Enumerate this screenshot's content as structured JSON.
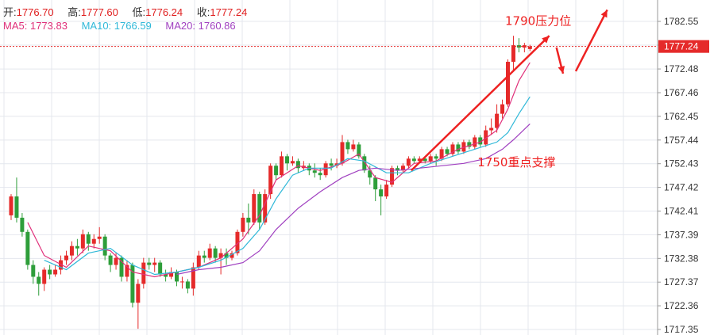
{
  "header": {
    "open_label": "开:",
    "open": "1776.70",
    "high_label": "高:",
    "high": "1777.60",
    "low_label": "低:",
    "low": "1776.24",
    "close_label": "收:",
    "close": "1777.24",
    "ma5_label": "MA5:",
    "ma5": "1773.83",
    "ma10_label": "MA10:",
    "ma10": "1766.59",
    "ma20_label": "MA20:",
    "ma20": "1760.86"
  },
  "colors": {
    "up": "#e52a2a",
    "down": "#2e9e3a",
    "ma5": "#e0307a",
    "ma10": "#2fb8d8",
    "ma20": "#a040c0",
    "annotation": "#ee2222",
    "grid": "#e4e7ee",
    "current_line": "#e52a2a"
  },
  "chart_data": {
    "type": "candlestick",
    "current_price": 1777.24,
    "current_price_label": "1777.24",
    "ylim": [
      1717.35,
      1785.5
    ],
    "y_ticks": [
      1782.55,
      1777.52,
      1772.48,
      1767.46,
      1762.45,
      1757.44,
      1752.43,
      1747.42,
      1742.41,
      1737.39,
      1732.38,
      1727.37,
      1722.36,
      1717.35
    ],
    "y_tick_labels": [
      "1782.55",
      "1777.52",
      "1772.48",
      "1767.46",
      "1762.45",
      "1757.44",
      "1752.43",
      "1747.42",
      "1742.41",
      "1737.39",
      "1732.38",
      "1727.37",
      "1722.36",
      "1717.35"
    ],
    "grid": true,
    "candles": [
      [
        1741.5,
        1745.5,
        1746.0,
        1740.5
      ],
      [
        1745.5,
        1741.0,
        1749.5,
        1740.0
      ],
      [
        1741.0,
        1738.0,
        1742.0,
        1737.0
      ],
      [
        1738.0,
        1731.0,
        1738.5,
        1730.0
      ],
      [
        1731.0,
        1728.5,
        1732.0,
        1727.0
      ],
      [
        1728.5,
        1727.0,
        1729.5,
        1724.5
      ],
      [
        1727.0,
        1730.0,
        1730.5,
        1725.5
      ],
      [
        1730.0,
        1729.0,
        1731.0,
        1728.0
      ],
      [
        1729.0,
        1730.0,
        1731.0,
        1728.5
      ],
      [
        1730.0,
        1732.0,
        1733.0,
        1729.0
      ],
      [
        1732.0,
        1733.0,
        1734.0,
        1731.0
      ],
      [
        1733.0,
        1735.0,
        1736.0,
        1732.0
      ],
      [
        1735.0,
        1734.5,
        1736.5,
        1733.0
      ],
      [
        1734.5,
        1737.5,
        1738.5,
        1733.5
      ],
      [
        1737.5,
        1735.5,
        1738.0,
        1734.0
      ],
      [
        1735.5,
        1736.5,
        1737.5,
        1734.5
      ],
      [
        1736.5,
        1737.0,
        1739.0,
        1735.5
      ],
      [
        1737.0,
        1733.0,
        1737.5,
        1732.0
      ],
      [
        1733.0,
        1731.0,
        1733.5,
        1729.5
      ],
      [
        1731.0,
        1732.5,
        1733.5,
        1730.0
      ],
      [
        1732.5,
        1728.5,
        1733.0,
        1727.5
      ],
      [
        1728.5,
        1731.0,
        1732.0,
        1727.5
      ],
      [
        1731.0,
        1723.0,
        1731.5,
        1722.0
      ],
      [
        1723.0,
        1727.0,
        1728.0,
        1717.5
      ],
      [
        1727.0,
        1731.5,
        1732.5,
        1726.0
      ],
      [
        1731.5,
        1731.0,
        1732.5,
        1730.0
      ],
      [
        1731.0,
        1731.5,
        1732.5,
        1729.5
      ],
      [
        1731.5,
        1729.0,
        1732.0,
        1728.5
      ],
      [
        1729.0,
        1728.5,
        1730.0,
        1727.5
      ],
      [
        1728.5,
        1729.5,
        1730.5,
        1728.0
      ],
      [
        1729.5,
        1727.5,
        1730.0,
        1726.5
      ],
      [
        1727.5,
        1727.5,
        1728.5,
        1726.0
      ],
      [
        1727.5,
        1726.0,
        1728.0,
        1725.0
      ],
      [
        1726.0,
        1730.5,
        1731.5,
        1724.5
      ],
      [
        1730.5,
        1733.0,
        1734.0,
        1730.0
      ],
      [
        1733.0,
        1732.5,
        1734.0,
        1731.5
      ],
      [
        1732.5,
        1734.5,
        1735.5,
        1732.0
      ],
      [
        1734.5,
        1732.5,
        1735.0,
        1731.5
      ],
      [
        1732.5,
        1733.5,
        1734.5,
        1729.0
      ],
      [
        1733.5,
        1732.5,
        1734.5,
        1731.0
      ],
      [
        1732.5,
        1733.5,
        1734.0,
        1732.0
      ],
      [
        1733.5,
        1738.0,
        1738.5,
        1733.0
      ],
      [
        1738.0,
        1741.0,
        1742.0,
        1737.0
      ],
      [
        1741.0,
        1740.0,
        1744.0,
        1737.5
      ],
      [
        1740.0,
        1746.0,
        1747.0,
        1739.5
      ],
      [
        1746.0,
        1740.0,
        1746.5,
        1738.5
      ],
      [
        1740.0,
        1746.0,
        1747.0,
        1739.5
      ],
      [
        1746.0,
        1752.0,
        1752.5,
        1745.0
      ],
      [
        1752.0,
        1750.0,
        1752.5,
        1749.0
      ],
      [
        1750.0,
        1754.0,
        1755.0,
        1749.5
      ],
      [
        1754.0,
        1752.5,
        1754.5,
        1751.0
      ],
      [
        1752.5,
        1753.0,
        1754.0,
        1752.0
      ],
      [
        1753.0,
        1751.5,
        1753.5,
        1750.5
      ],
      [
        1751.5,
        1752.0,
        1753.0,
        1751.0
      ],
      [
        1752.0,
        1751.0,
        1752.5,
        1750.0
      ],
      [
        1751.0,
        1750.5,
        1752.5,
        1749.5
      ],
      [
        1750.5,
        1750.0,
        1751.5,
        1749.0
      ],
      [
        1750.0,
        1752.5,
        1753.0,
        1749.5
      ],
      [
        1752.5,
        1752.0,
        1753.5,
        1751.0
      ],
      [
        1752.0,
        1752.5,
        1753.5,
        1751.5
      ],
      [
        1752.5,
        1757.0,
        1758.5,
        1752.0
      ],
      [
        1757.0,
        1755.5,
        1757.5,
        1754.5
      ],
      [
        1755.5,
        1756.5,
        1757.5,
        1755.0
      ],
      [
        1756.5,
        1754.0,
        1757.0,
        1753.5
      ],
      [
        1754.0,
        1751.0,
        1754.5,
        1750.5
      ],
      [
        1751.0,
        1749.5,
        1752.0,
        1748.0
      ],
      [
        1749.5,
        1747.0,
        1750.0,
        1744.5
      ],
      [
        1747.0,
        1745.5,
        1748.0,
        1741.5
      ],
      [
        1745.5,
        1748.0,
        1749.0,
        1745.0
      ],
      [
        1748.0,
        1751.5,
        1752.0,
        1747.5
      ],
      [
        1751.5,
        1751.0,
        1752.0,
        1750.0
      ],
      [
        1751.0,
        1752.0,
        1752.5,
        1750.5
      ],
      [
        1752.0,
        1753.5,
        1754.0,
        1751.5
      ],
      [
        1753.5,
        1753.0,
        1754.0,
        1752.5
      ],
      [
        1753.0,
        1753.5,
        1754.0,
        1752.5
      ],
      [
        1753.5,
        1753.0,
        1754.0,
        1752.5
      ],
      [
        1753.0,
        1754.0,
        1754.5,
        1752.5
      ],
      [
        1754.0,
        1753.5,
        1754.5,
        1752.0
      ],
      [
        1753.5,
        1755.5,
        1756.0,
        1753.0
      ],
      [
        1755.5,
        1754.5,
        1756.0,
        1754.0
      ],
      [
        1754.5,
        1756.5,
        1757.0,
        1754.0
      ],
      [
        1756.5,
        1755.0,
        1757.0,
        1754.5
      ],
      [
        1755.0,
        1757.0,
        1757.5,
        1754.5
      ],
      [
        1757.0,
        1756.0,
        1757.5,
        1755.5
      ],
      [
        1756.0,
        1758.0,
        1758.5,
        1755.5
      ],
      [
        1758.0,
        1756.5,
        1758.5,
        1756.0
      ],
      [
        1756.5,
        1759.5,
        1760.5,
        1756.0
      ],
      [
        1759.5,
        1760.0,
        1762.0,
        1758.5
      ],
      [
        1760.0,
        1763.0,
        1765.0,
        1759.0
      ],
      [
        1763.0,
        1765.0,
        1766.0,
        1762.0
      ],
      [
        1765.0,
        1774.0,
        1774.5,
        1764.5
      ],
      [
        1774.0,
        1777.5,
        1779.5,
        1772.0
      ],
      [
        1777.5,
        1777.0,
        1779.0,
        1776.0
      ],
      [
        1777.0,
        1777.5,
        1778.0,
        1776.0
      ],
      [
        1776.7,
        1777.24,
        1777.6,
        1776.24
      ]
    ],
    "ma5": [
      [
        3,
        1740.0
      ],
      [
        6,
        1733.0
      ],
      [
        10,
        1730.5
      ],
      [
        14,
        1735.0
      ],
      [
        18,
        1734.0
      ],
      [
        22,
        1729.5
      ],
      [
        26,
        1728.5
      ],
      [
        30,
        1729.5
      ],
      [
        34,
        1730.5
      ],
      [
        38,
        1732.5
      ],
      [
        42,
        1736.5
      ],
      [
        45,
        1741.5
      ],
      [
        48,
        1749.0
      ],
      [
        52,
        1752.0
      ],
      [
        56,
        1751.0
      ],
      [
        60,
        1752.5
      ],
      [
        63,
        1754.5
      ],
      [
        66,
        1749.5
      ],
      [
        69,
        1748.5
      ],
      [
        73,
        1752.5
      ],
      [
        77,
        1753.0
      ],
      [
        81,
        1755.5
      ],
      [
        85,
        1757.0
      ],
      [
        88,
        1759.5
      ],
      [
        90,
        1764.0
      ],
      [
        92,
        1770.0
      ],
      [
        94,
        1773.83
      ]
    ],
    "ma10": [
      [
        6,
        1732.0
      ],
      [
        10,
        1730.0
      ],
      [
        14,
        1733.5
      ],
      [
        18,
        1734.5
      ],
      [
        22,
        1731.0
      ],
      [
        26,
        1729.0
      ],
      [
        30,
        1729.5
      ],
      [
        34,
        1730.5
      ],
      [
        38,
        1732.0
      ],
      [
        42,
        1734.5
      ],
      [
        45,
        1738.5
      ],
      [
        48,
        1745.0
      ],
      [
        51,
        1750.0
      ],
      [
        54,
        1751.5
      ],
      [
        58,
        1751.5
      ],
      [
        61,
        1753.5
      ],
      [
        64,
        1753.0
      ],
      [
        68,
        1750.5
      ],
      [
        72,
        1750.5
      ],
      [
        76,
        1752.5
      ],
      [
        80,
        1754.0
      ],
      [
        84,
        1755.5
      ],
      [
        88,
        1757.0
      ],
      [
        90,
        1759.0
      ],
      [
        92,
        1763.0
      ],
      [
        94,
        1766.59
      ]
    ],
    "ma20": [
      [
        30,
        1729.0
      ],
      [
        34,
        1730.0
      ],
      [
        38,
        1730.5
      ],
      [
        42,
        1731.5
      ],
      [
        45,
        1734.0
      ],
      [
        48,
        1738.5
      ],
      [
        52,
        1743.0
      ],
      [
        56,
        1746.5
      ],
      [
        60,
        1749.5
      ],
      [
        63,
        1751.0
      ],
      [
        66,
        1751.5
      ],
      [
        70,
        1751.0
      ],
      [
        74,
        1751.5
      ],
      [
        78,
        1752.0
      ],
      [
        82,
        1752.5
      ],
      [
        86,
        1753.5
      ],
      [
        89,
        1755.5
      ],
      [
        91,
        1757.5
      ],
      [
        94,
        1760.86
      ]
    ],
    "annotations": [
      {
        "text": "1790压力位",
        "x": 89.5,
        "y": 1781.8
      },
      {
        "text": "1750重点支撑",
        "x": 84.5,
        "y": 1751.9
      }
    ],
    "arrows": [
      {
        "from": [
          72.5,
          1751.0
        ],
        "to": [
          97.5,
          1779.5
        ]
      },
      {
        "from": [
          98.8,
          1777.0
        ],
        "to": [
          100.0,
          1771.5
        ]
      },
      {
        "from": [
          102.3,
          1772.0
        ],
        "to": [
          108.0,
          1785.0
        ]
      }
    ]
  }
}
